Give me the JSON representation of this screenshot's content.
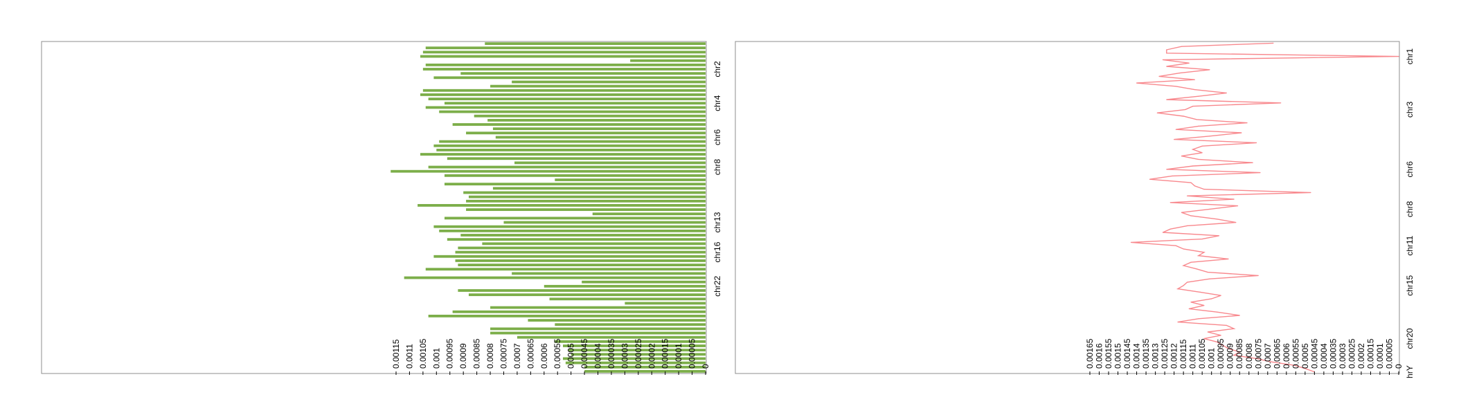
{
  "colors": {
    "bar": "#7cae49",
    "line": "#f8888d",
    "frame": "#8c8c8c",
    "text": "#000000"
  },
  "chart_data": [
    {
      "type": "bar",
      "orientation": "horizontal",
      "xlim": [
        0,
        0.00115
      ],
      "ticks": [
        {
          "value": 0.00115,
          "label": "0.00115"
        },
        {
          "value": 0.0011,
          "label": "0.0011"
        },
        {
          "value": 0.00105,
          "label": "0.00105"
        },
        {
          "value": 0.001,
          "label": "0.001"
        },
        {
          "value": 0.00095,
          "label": "0.00095"
        },
        {
          "value": 0.0009,
          "label": "0.0009"
        },
        {
          "value": 0.00085,
          "label": "0.00085"
        },
        {
          "value": 0.0008,
          "label": "0.0008"
        },
        {
          "value": 0.00075,
          "label": "0.00075"
        },
        {
          "value": 0.0007,
          "label": "0.0007"
        },
        {
          "value": 0.00065,
          "label": "0.00065"
        },
        {
          "value": 0.0006,
          "label": "0.0006"
        },
        {
          "value": 0.00055,
          "label": "0.00055"
        },
        {
          "value": 0.0005,
          "label": "0.0005"
        },
        {
          "value": 0.00045,
          "label": "0.00045"
        },
        {
          "value": 0.0004,
          "label": "0.0004"
        },
        {
          "value": 0.00035,
          "label": "0.00035"
        },
        {
          "value": 0.0003,
          "label": "0.0003"
        },
        {
          "value": 0.00025,
          "label": "0.00025"
        },
        {
          "value": 0.0002,
          "label": "0.0002"
        },
        {
          "value": 0.00015,
          "label": "0.00015"
        },
        {
          "value": 0.0001,
          "label": "0.0001"
        },
        {
          "value": 5e-05,
          "label": "0.00005"
        },
        {
          "value": 0,
          "label": "0"
        }
      ],
      "category_labels": [
        {
          "label": "chr2",
          "index": 6
        },
        {
          "label": "chr4",
          "index": 14
        },
        {
          "label": "chr6",
          "index": 22
        },
        {
          "label": "chr8",
          "index": 29
        },
        {
          "label": "chr13",
          "index": 42
        },
        {
          "label": "chr16",
          "index": 49
        },
        {
          "label": "chr22",
          "index": 57
        }
      ],
      "values": [
        0.00082,
        0.00104,
        0.00105,
        0.00106,
        0.00028,
        0.00104,
        0.00105,
        0.00091,
        0.00101,
        0.00072,
        0.0008,
        0.00105,
        0.00106,
        0.00103,
        0.00097,
        0.00104,
        0.00099,
        0.00086,
        0.00081,
        0.00094,
        0.00079,
        0.00089,
        0.00078,
        0.00099,
        0.00101,
        0.001,
        0.00106,
        0.00096,
        0.00071,
        0.00103,
        0.00117,
        0.00097,
        0.00056,
        0.00097,
        0.00079,
        0.0009,
        0.00088,
        0.00089,
        0.00107,
        0.00089,
        0.00042,
        0.00097,
        0.00075,
        0.00101,
        0.00099,
        0.00091,
        0.00096,
        0.00083,
        0.00092,
        0.00093,
        0.00101,
        0.00093,
        0.00092,
        0.00104,
        0.00072,
        0.00112,
        0.00046,
        0.0006,
        0.00092,
        0.00088,
        0.00058,
        0.0003,
        0.0008,
        0.00094,
        0.00103,
        0.00066,
        0.00056,
        0.0008,
        0.0008,
        0.0007,
        0.00056,
        0.00053,
        0.00051,
        0.0005,
        0.00053,
        0.00052,
        0.00045,
        0.00045
      ]
    },
    {
      "type": "line",
      "orientation": "vertical",
      "xlim": [
        0,
        0.00165
      ],
      "ticks": [
        {
          "value": 0.00165,
          "label": "0.00165"
        },
        {
          "value": 0.0016,
          "label": "0.0016"
        },
        {
          "value": 0.00155,
          "label": "0.00155"
        },
        {
          "value": 0.0015,
          "label": "0.0015"
        },
        {
          "value": 0.00145,
          "label": "0.00145"
        },
        {
          "value": 0.0014,
          "label": "0.0014"
        },
        {
          "value": 0.00135,
          "label": "0.00135"
        },
        {
          "value": 0.0013,
          "label": "0.0013"
        },
        {
          "value": 0.00125,
          "label": "0.00125"
        },
        {
          "value": 0.0012,
          "label": "0.0012"
        },
        {
          "value": 0.00115,
          "label": "0.00115"
        },
        {
          "value": 0.0011,
          "label": "0.0011"
        },
        {
          "value": 0.00105,
          "label": "0.00105"
        },
        {
          "value": 0.001,
          "label": "0.001"
        },
        {
          "value": 0.00095,
          "label": "0.00095"
        },
        {
          "value": 0.0009,
          "label": "0.0009"
        },
        {
          "value": 0.00085,
          "label": "0.00085"
        },
        {
          "value": 0.0008,
          "label": "0.0008"
        },
        {
          "value": 0.00075,
          "label": "0.00075"
        },
        {
          "value": 0.0007,
          "label": "0.0007"
        },
        {
          "value": 0.00065,
          "label": "0.00065"
        },
        {
          "value": 0.0006,
          "label": "0.0006"
        },
        {
          "value": 0.00055,
          "label": "0.00055"
        },
        {
          "value": 0.0005,
          "label": "0.0005"
        },
        {
          "value": 0.00045,
          "label": "0.00045"
        },
        {
          "value": 0.0004,
          "label": "0.0004"
        },
        {
          "value": 0.00035,
          "label": "0.00035"
        },
        {
          "value": 0.0003,
          "label": "0.0003"
        },
        {
          "value": 0.00025,
          "label": "0.00025"
        },
        {
          "value": 0.0002,
          "label": "0.0002"
        },
        {
          "value": 0.00015,
          "label": "0.00015"
        },
        {
          "value": 0.0001,
          "label": "0.0001"
        },
        {
          "value": 5e-05,
          "label": "0.00005"
        },
        {
          "value": 0,
          "label": "0"
        }
      ],
      "category_labels": [
        {
          "label": "chr1",
          "index": 4
        },
        {
          "label": "chr3",
          "index": 20
        },
        {
          "label": "chr6",
          "index": 38
        },
        {
          "label": "chr8",
          "index": 50
        },
        {
          "label": "chr11",
          "index": 61
        },
        {
          "label": "chr15",
          "index": 73
        },
        {
          "label": "chr20",
          "index": 89
        },
        {
          "label": "hrY",
          "index": 99
        }
      ],
      "values": [
        0.00067,
        0.00116,
        0.00124,
        0.00124,
        0.0,
        0.00126,
        0.00112,
        0.00124,
        0.00101,
        0.00117,
        0.00128,
        0.00109,
        0.0014,
        0.00119,
        0.00109,
        0.00092,
        0.00107,
        0.00124,
        0.00063,
        0.0011,
        0.00114,
        0.00129,
        0.00115,
        0.00108,
        0.00081,
        0.00107,
        0.00119,
        0.00084,
        0.00101,
        0.0012,
        0.00076,
        0.00105,
        0.0011,
        0.00105,
        0.00116,
        0.00107,
        0.00078,
        0.0011,
        0.00124,
        0.00074,
        0.00121,
        0.00133,
        0.00111,
        0.00109,
        0.00104,
        0.00047,
        0.00113,
        0.00088,
        0.00122,
        0.00086,
        0.00101,
        0.00116,
        0.00111,
        0.00097,
        0.00087,
        0.00113,
        0.00122,
        0.00126,
        0.00096,
        0.00105,
        0.00143,
        0.00119,
        0.00115,
        0.00104,
        0.00107,
        0.00091,
        0.00111,
        0.00115,
        0.00108,
        0.00102,
        0.00075,
        0.00101,
        0.00113,
        0.00115,
        0.00118,
        0.00106,
        0.00095,
        0.001,
        0.00111,
        0.00104,
        0.00112,
        0.00097,
        0.00085,
        0.00107,
        0.00118,
        0.00092,
        0.00088,
        0.00102,
        0.00095,
        0.00104,
        0.00097,
        0.00094,
        0.00091,
        0.00085,
        0.00088,
        0.00076,
        0.00068,
        0.00056,
        0.0005,
        0.00045
      ]
    }
  ]
}
